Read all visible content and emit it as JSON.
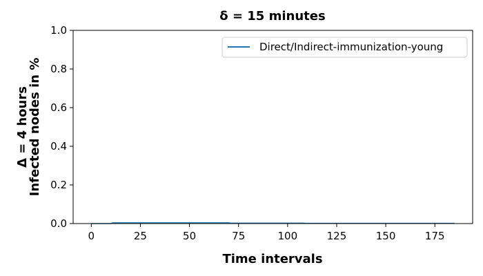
{
  "chart_data": {
    "type": "line",
    "title": "δ = 15 minutes",
    "xlabel": "Time intervals",
    "ylabel_lines": [
      "Δ = 4 hours",
      "Infected nodes in %"
    ],
    "xlim": [
      -9.25,
      194.25
    ],
    "ylim": [
      0.0,
      1.0
    ],
    "xticks": [
      0,
      25,
      50,
      75,
      100,
      125,
      150,
      175
    ],
    "yticks": [
      0.0,
      0.2,
      0.4,
      0.6,
      0.8,
      1.0
    ],
    "xtick_labels": [
      "0",
      "25",
      "50",
      "75",
      "100",
      "125",
      "150",
      "175"
    ],
    "ytick_labels": [
      "0.0",
      "0.2",
      "0.4",
      "0.6",
      "0.8",
      "1.0"
    ],
    "grid": false,
    "legend_position": "top-right",
    "series": [
      {
        "name": "Direct/Indirect-immunization-young",
        "color": "#1f77b4",
        "x": [
          0,
          5,
          10,
          11,
          20,
          30,
          40,
          50,
          60,
          70,
          71,
          80,
          90,
          100,
          108,
          109,
          120,
          140,
          160,
          185
        ],
        "y": [
          0.0,
          0.0,
          0.0,
          0.004,
          0.004,
          0.004,
          0.004,
          0.004,
          0.004,
          0.004,
          0.002,
          0.002,
          0.002,
          0.002,
          0.002,
          0.001,
          0.001,
          0.001,
          0.001,
          0.001
        ]
      }
    ]
  }
}
